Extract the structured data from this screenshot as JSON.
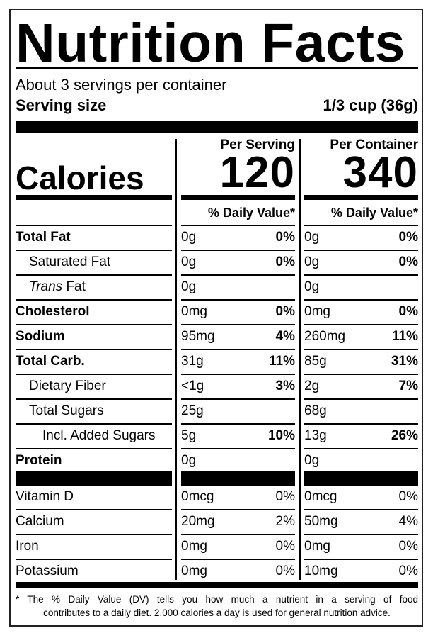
{
  "title": "Nutrition Facts",
  "servings_per_container": "About 3 servings per container",
  "serving_size_label": "Serving size",
  "serving_size_value": "1/3 cup (36g)",
  "calories_label": "Calories",
  "columns": [
    {
      "header": "Per Serving",
      "calories": "120",
      "dv_header": "% Daily Value*"
    },
    {
      "header": "Per Container",
      "calories": "340",
      "dv_header": "% Daily Value*"
    }
  ],
  "nutrients": [
    {
      "name": "Total Fat",
      "bold": true,
      "indent": 0,
      "serving": {
        "amount": "0g",
        "dv": "0%"
      },
      "container": {
        "amount": "0g",
        "dv": "0%"
      }
    },
    {
      "name": "Saturated Fat",
      "bold": false,
      "indent": 1,
      "serving": {
        "amount": "0g",
        "dv": "0%"
      },
      "container": {
        "amount": "0g",
        "dv": "0%"
      }
    },
    {
      "name": "Trans",
      "name_suffix": " Fat",
      "italic_prefix": true,
      "bold": false,
      "indent": 1,
      "serving": {
        "amount": "0g",
        "dv": ""
      },
      "container": {
        "amount": "0g",
        "dv": ""
      }
    },
    {
      "name": "Cholesterol",
      "bold": true,
      "indent": 0,
      "serving": {
        "amount": "0mg",
        "dv": "0%"
      },
      "container": {
        "amount": "0mg",
        "dv": "0%"
      }
    },
    {
      "name": "Sodium",
      "bold": true,
      "indent": 0,
      "serving": {
        "amount": "95mg",
        "dv": "4%"
      },
      "container": {
        "amount": "260mg",
        "dv": "11%"
      }
    },
    {
      "name": "Total Carb.",
      "bold": true,
      "indent": 0,
      "serving": {
        "amount": "31g",
        "dv": "11%"
      },
      "container": {
        "amount": "85g",
        "dv": "31%"
      }
    },
    {
      "name": "Dietary Fiber",
      "bold": false,
      "indent": 1,
      "serving": {
        "amount": "<1g",
        "dv": "3%"
      },
      "container": {
        "amount": "2g",
        "dv": "7%"
      }
    },
    {
      "name": "Total Sugars",
      "bold": false,
      "indent": 1,
      "serving": {
        "amount": "25g",
        "dv": ""
      },
      "container": {
        "amount": "68g",
        "dv": ""
      }
    },
    {
      "name": "Incl. Added Sugars",
      "bold": false,
      "indent": 2,
      "serving": {
        "amount": "5g",
        "dv": "10%"
      },
      "container": {
        "amount": "13g",
        "dv": "26%"
      }
    },
    {
      "name": "Protein",
      "bold": true,
      "indent": 0,
      "serving": {
        "amount": "0g",
        "dv": ""
      },
      "container": {
        "amount": "0g",
        "dv": ""
      }
    }
  ],
  "vitamins": [
    {
      "name": "Vitamin D",
      "serving": {
        "amount": "0mcg",
        "dv": "0%"
      },
      "container": {
        "amount": "0mcg",
        "dv": "0%"
      }
    },
    {
      "name": "Calcium",
      "serving": {
        "amount": "20mg",
        "dv": "2%"
      },
      "container": {
        "amount": "50mg",
        "dv": "4%"
      }
    },
    {
      "name": "Iron",
      "serving": {
        "amount": "0mg",
        "dv": "0%"
      },
      "container": {
        "amount": "0mg",
        "dv": "0%"
      }
    },
    {
      "name": "Potassium",
      "serving": {
        "amount": "0mg",
        "dv": "0%"
      },
      "container": {
        "amount": "10mg",
        "dv": "0%"
      }
    }
  ],
  "footnote": {
    "line1": "* The % Daily Value (DV) tells you how much a nutrient in a serving of food",
    "line2": "contributes to a daily diet. 2,000 calories a day is used for general nutrition advice."
  }
}
